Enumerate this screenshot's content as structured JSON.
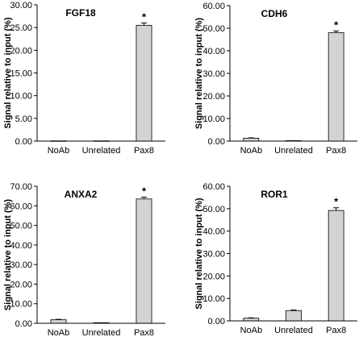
{
  "chart_data": [
    {
      "type": "bar",
      "title": "FGF18",
      "ylabel": "Signal relative to input (%)",
      "categories": [
        "NoAb",
        "Unrelated",
        "Pax8"
      ],
      "values": [
        0.05,
        0.05,
        25.5
      ],
      "errors": [
        0.02,
        0.02,
        0.5
      ],
      "significance": [
        "",
        "",
        "*"
      ],
      "ylim": [
        0,
        30
      ],
      "yticks": [
        "0.00",
        "5.00",
        "10.00",
        "15.00",
        "20.00",
        "25.00",
        "30.00"
      ],
      "bar_color": "#d3d3d3"
    },
    {
      "type": "bar",
      "title": "CDH6",
      "ylabel": "Signal relative to input (%)",
      "categories": [
        "NoAb",
        "Unrelated",
        "Pax8"
      ],
      "values": [
        1.3,
        0.2,
        48.0
      ],
      "errors": [
        0.15,
        0.05,
        0.8
      ],
      "significance": [
        "",
        "",
        "*"
      ],
      "ylim": [
        0,
        60
      ],
      "yticks": [
        "0.00",
        "10.00",
        "20.00",
        "30.00",
        "40.00",
        "50.00",
        "60.00"
      ],
      "bar_color": "#d3d3d3"
    },
    {
      "type": "bar",
      "title": "ANXA2",
      "ylabel": "Signal relative to input (%)",
      "categories": [
        "NoAb",
        "Unrelated",
        "Pax8"
      ],
      "values": [
        1.8,
        0.3,
        63.5
      ],
      "errors": [
        0.2,
        0.05,
        0.9
      ],
      "significance": [
        "",
        "",
        "*"
      ],
      "ylim": [
        0,
        70
      ],
      "yticks": [
        "0.00",
        "10.00",
        "20.00",
        "30.00",
        "40.00",
        "50.00",
        "60.00",
        "70.00"
      ],
      "bar_color": "#d3d3d3"
    },
    {
      "type": "bar",
      "title": "ROR1",
      "ylabel": "Signal relative to input (%)",
      "categories": [
        "NoAb",
        "Unrelated",
        "Pax8"
      ],
      "values": [
        1.2,
        4.6,
        49.2
      ],
      "errors": [
        0.15,
        0.25,
        1.2
      ],
      "significance": [
        "",
        "",
        "*"
      ],
      "ylim": [
        0,
        60
      ],
      "yticks": [
        "0.00",
        "10.00",
        "20.00",
        "30.00",
        "40.00",
        "50.00",
        "60.00"
      ],
      "bar_color": "#d3d3d3"
    }
  ]
}
